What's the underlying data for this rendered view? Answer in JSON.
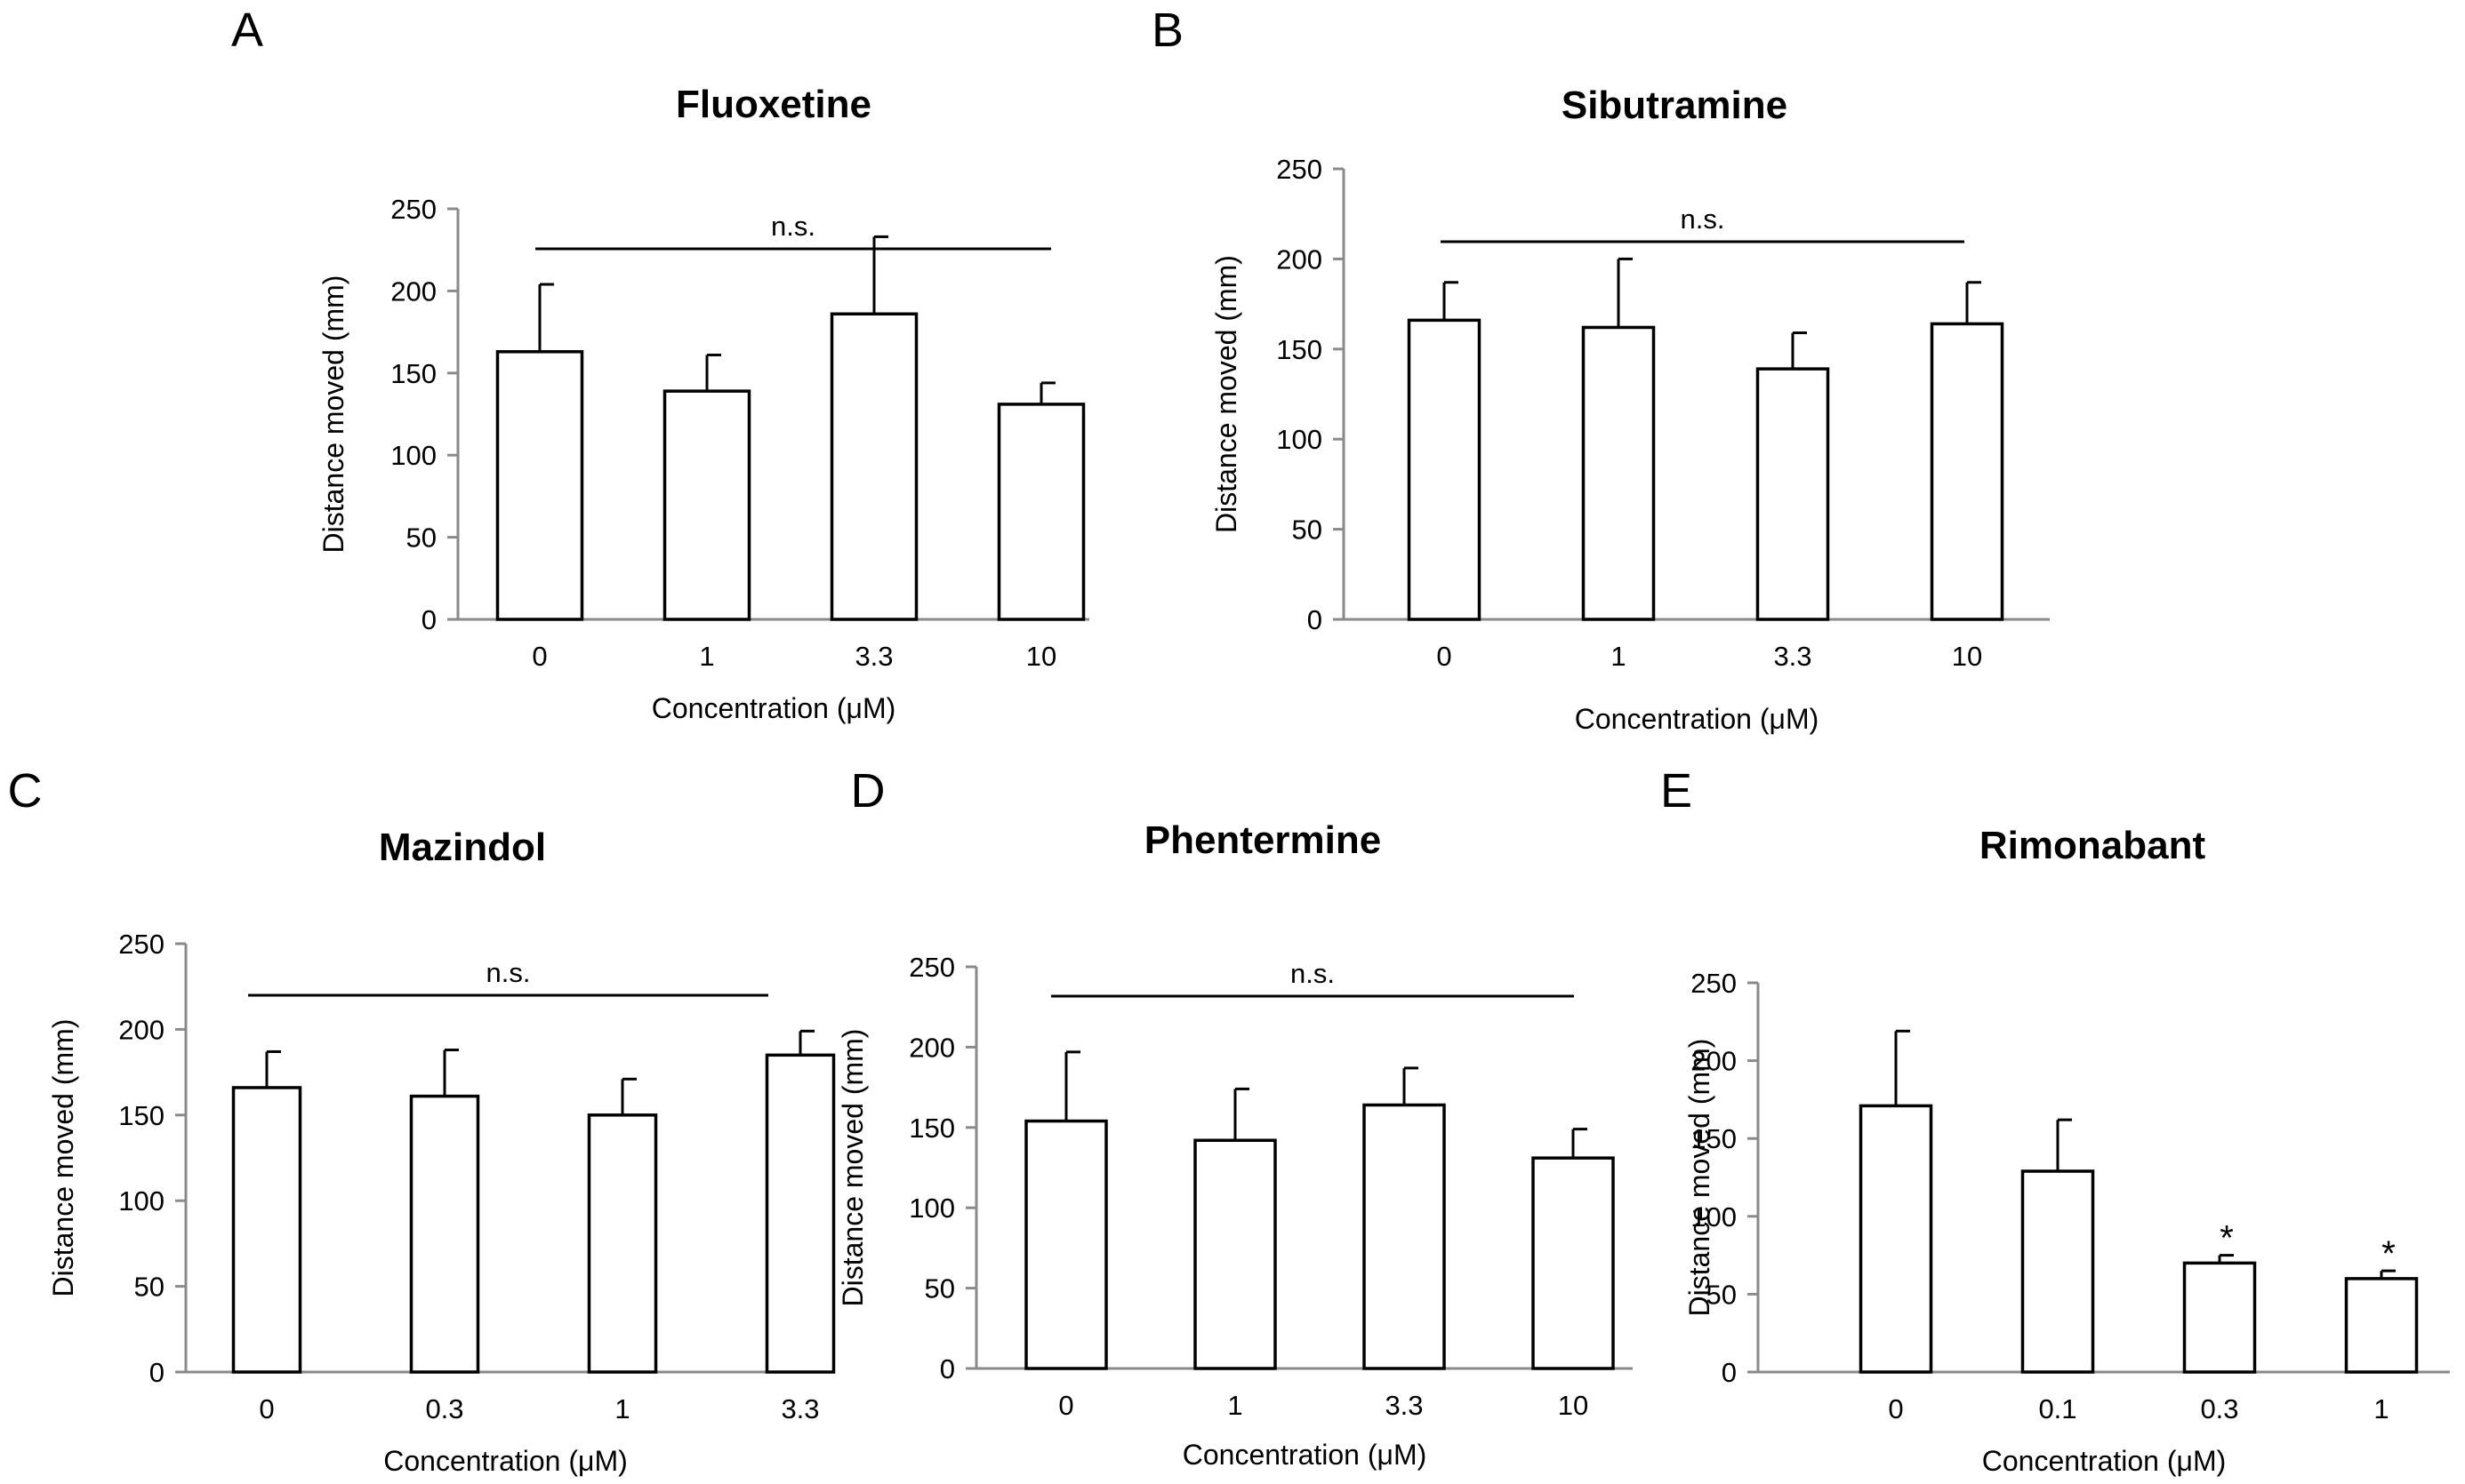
{
  "chart_data": [
    {
      "panel": "A",
      "type": "bar",
      "title": "Fluoxetine",
      "xlabel": "Concentration (μM)",
      "ylabel": "Distance moved (mm)",
      "categories": [
        "0",
        "1",
        "3.3",
        "10"
      ],
      "values": [
        163,
        139,
        186,
        131
      ],
      "errors": [
        41,
        22,
        47,
        13
      ],
      "ylim": [
        0,
        250
      ],
      "yticks": [
        "0",
        "50",
        "100",
        "150",
        "200",
        "250"
      ],
      "significance": "n.s.",
      "markers": [
        "",
        "",
        "",
        ""
      ],
      "grid": false,
      "legend": "none"
    },
    {
      "panel": "B",
      "type": "bar",
      "title": "Sibutramine",
      "xlabel": "Concentration (μM)",
      "ylabel": "Distance moved (mm)",
      "categories": [
        "0",
        "1",
        "3.3",
        "10"
      ],
      "values": [
        166,
        162,
        139,
        164
      ],
      "errors": [
        21,
        38,
        20,
        23
      ],
      "ylim": [
        0,
        250
      ],
      "yticks": [
        "0",
        "50",
        "100",
        "150",
        "200",
        "250"
      ],
      "significance": "n.s.",
      "markers": [
        "",
        "",
        "",
        ""
      ],
      "grid": false,
      "legend": "none"
    },
    {
      "panel": "C",
      "type": "bar",
      "title": "Mazindol",
      "xlabel": "Concentration (μM)",
      "ylabel": "Distance moved (mm)",
      "categories": [
        "0",
        "0.3",
        "1",
        "3.3"
      ],
      "values": [
        166,
        161,
        150,
        185
      ],
      "errors": [
        21,
        27,
        21,
        14
      ],
      "ylim": [
        0,
        250
      ],
      "yticks": [
        "0",
        "50",
        "100",
        "150",
        "200",
        "250"
      ],
      "significance": "n.s.",
      "markers": [
        "",
        "",
        "",
        ""
      ],
      "grid": false,
      "legend": "none"
    },
    {
      "panel": "D",
      "type": "bar",
      "title": "Phentermine",
      "xlabel": "Concentration (μM)",
      "ylabel": "Distance moved (mm)",
      "categories": [
        "0",
        "1",
        "3.3",
        "10"
      ],
      "values": [
        154,
        142,
        164,
        131
      ],
      "errors": [
        43,
        32,
        23,
        18
      ],
      "ylim": [
        0,
        250
      ],
      "yticks": [
        "0",
        "50",
        "100",
        "150",
        "200",
        "250"
      ],
      "significance": "n.s.",
      "markers": [
        "",
        "",
        "",
        ""
      ],
      "grid": false,
      "legend": "none"
    },
    {
      "panel": "E",
      "type": "bar",
      "title": "Rimonabant",
      "xlabel": "Concentration (μM)",
      "ylabel": "Distance moved (mm)",
      "categories": [
        "0",
        "0.1",
        "0.3",
        "1"
      ],
      "values": [
        171,
        129,
        70,
        60
      ],
      "errors": [
        48,
        33,
        5,
        5
      ],
      "ylim": [
        0,
        250
      ],
      "yticks": [
        "0",
        "50",
        "100",
        "150",
        "200",
        "250"
      ],
      "significance": "",
      "markers": [
        "",
        "",
        "*",
        "*"
      ],
      "grid": false,
      "legend": "none"
    }
  ]
}
